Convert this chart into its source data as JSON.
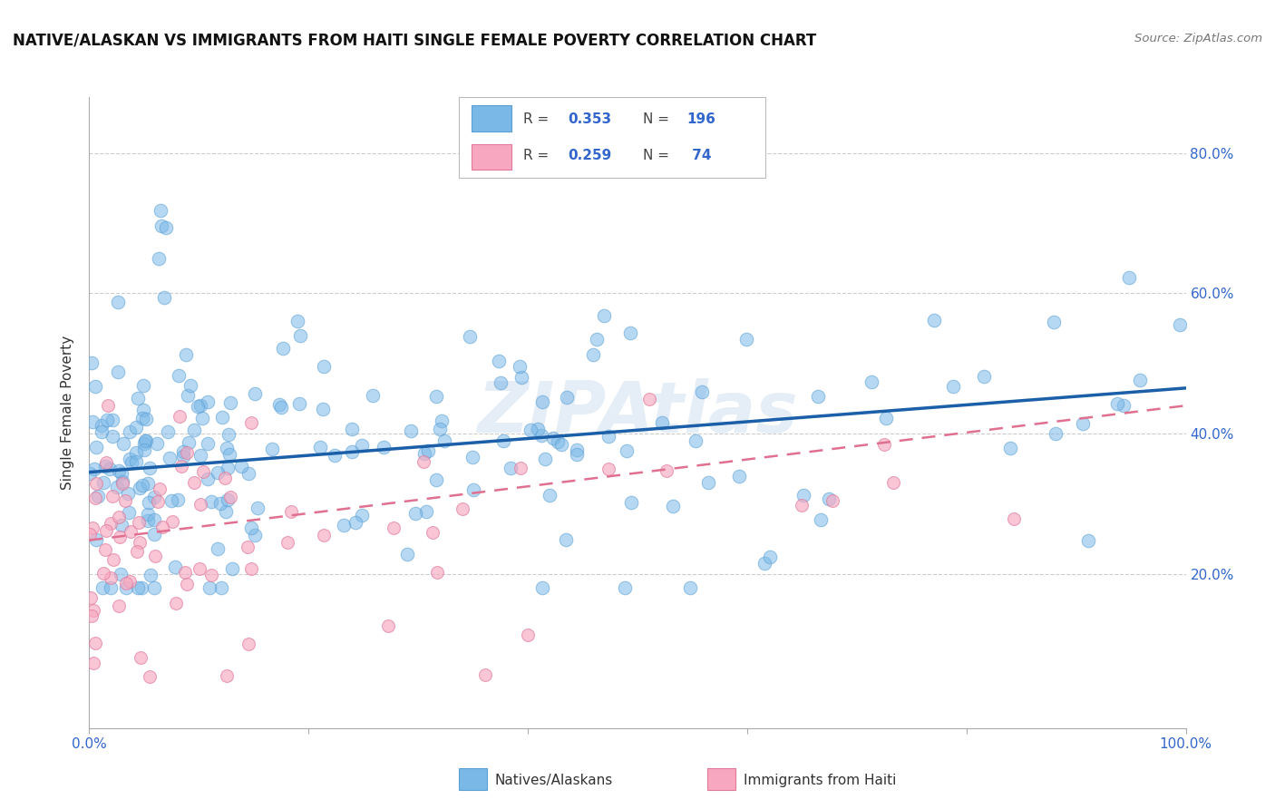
{
  "title": "NATIVE/ALASKAN VS IMMIGRANTS FROM HAITI SINGLE FEMALE POVERTY CORRELATION CHART",
  "source": "Source: ZipAtlas.com",
  "ylabel": "Single Female Poverty",
  "blue_color": "#7ab8e8",
  "blue_edge_color": "#5a9fd4",
  "pink_color": "#f7a8c0",
  "pink_edge_color": "#e07898",
  "blue_line_color": "#1a5fa8",
  "pink_line_color": "#e07090",
  "watermark": "ZIPAtlas",
  "background_color": "#ffffff",
  "grid_color": "#cccccc",
  "title_fontsize": 12,
  "axis_label_color": "#3366cc",
  "legend_label_color": "#3366cc",
  "blue_trendline_x": [
    0.0,
    1.0
  ],
  "blue_trendline_y": [
    0.345,
    0.465
  ],
  "pink_trendline_x": [
    0.0,
    1.0
  ],
  "pink_trendline_y": [
    0.248,
    0.44
  ],
  "xlim": [
    0.0,
    1.0
  ],
  "ylim": [
    -0.02,
    0.88
  ],
  "x_ticks": [
    0.0,
    0.2,
    0.4,
    0.6,
    0.8,
    1.0
  ],
  "y_ticks": [
    0.2,
    0.4,
    0.6,
    0.8
  ],
  "y_tick_labels": [
    "20.0%",
    "40.0%",
    "60.0%",
    "80.0%"
  ],
  "N_blue": 196,
  "N_pink": 74
}
